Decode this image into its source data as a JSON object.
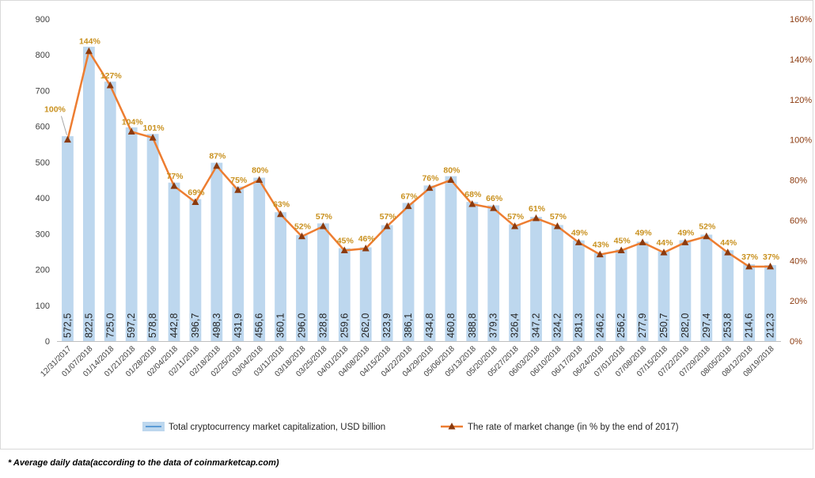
{
  "chart_data": {
    "type": "bar+line",
    "categories": [
      "12/31/2017",
      "01/07/2018",
      "01/14/2018",
      "01/21/2018",
      "01/28/2018",
      "02/04/2018",
      "02/11/2018",
      "02/18/2018",
      "02/25/2018",
      "03/04/2018",
      "03/11/2018",
      "03/18/2018",
      "03/25/2018",
      "04/01/2018",
      "04/08/2018",
      "04/15/2018",
      "04/22/2018",
      "04/29/2018",
      "05/06/2018",
      "05/13/2018",
      "05/20/2018",
      "05/27/2018",
      "06/03/2018",
      "06/10/2018",
      "06/17/2018",
      "06/24/2018",
      "07/01/2018",
      "07/08/2018",
      "07/15/2018",
      "07/22/2018",
      "07/29/2018",
      "08/05/2018",
      "08/12/2018",
      "08/19/2018"
    ],
    "series": [
      {
        "name": "Total cryptocurrency market capitalization, USD billion",
        "axis": "left",
        "type": "bar",
        "color": "#bdd7ee",
        "values": [
          572.5,
          822.5,
          725.0,
          597.2,
          578.8,
          442.8,
          396.7,
          498.3,
          431.9,
          456.6,
          360.1,
          296.0,
          328.8,
          259.6,
          262.0,
          323.9,
          386.1,
          434.8,
          460.8,
          388.8,
          379.3,
          326.4,
          347.2,
          324.2,
          281.3,
          246.2,
          256.2,
          277.9,
          250.7,
          282.0,
          297.4,
          253.8,
          214.6,
          212.3
        ],
        "labels": [
          "572,5",
          "822,5",
          "725,0",
          "597,2",
          "578,8",
          "442,8",
          "396,7",
          "498,3",
          "431,9",
          "456,6",
          "360,1",
          "296,0",
          "328,8",
          "259,6",
          "262,0",
          "323,9",
          "386,1",
          "434,8",
          "460,8",
          "388,8",
          "379,3",
          "326,4",
          "347,2",
          "324,2",
          "281,3",
          "246,2",
          "256,2",
          "277,9",
          "250,7",
          "282,0",
          "297,4",
          "253,8",
          "214,6",
          "212,3"
        ]
      },
      {
        "name": "The rate of market change (in % by the end of 2017)",
        "axis": "right",
        "type": "line",
        "color": "#ed7d31",
        "marker_color": "#8b3a0e",
        "values": [
          100,
          144,
          127,
          104,
          101,
          77,
          69,
          87,
          75,
          80,
          63,
          52,
          57,
          45,
          46,
          57,
          67,
          76,
          80,
          68,
          66,
          57,
          61,
          57,
          49,
          43,
          45,
          49,
          44,
          49,
          52,
          44,
          37,
          37
        ],
        "labels": [
          "100%",
          "144%",
          "127%",
          "104%",
          "101%",
          "77%",
          "69%",
          "87%",
          "75%",
          "80%",
          "63%",
          "52%",
          "57%",
          "45%",
          "46%",
          "57%",
          "67%",
          "76%",
          "80%",
          "68%",
          "66%",
          "57%",
          "61%",
          "57%",
          "49%",
          "43%",
          "45%",
          "49%",
          "44%",
          "49%",
          "52%",
          "44%",
          "37%",
          "37%"
        ]
      }
    ],
    "y_left": {
      "min": 0,
      "max": 900,
      "ticks": [
        "0",
        "100",
        "200",
        "300",
        "400",
        "500",
        "600",
        "700",
        "800",
        "900"
      ]
    },
    "y_right": {
      "min": 0,
      "max": 160,
      "ticks": [
        "0%",
        "20%",
        "40%",
        "60%",
        "80%",
        "100%",
        "120%",
        "140%",
        "160%"
      ]
    },
    "grid": false,
    "legend_position": "bottom"
  },
  "footnote": "* Average daily data(according to the data of coinmarketcap.com)"
}
